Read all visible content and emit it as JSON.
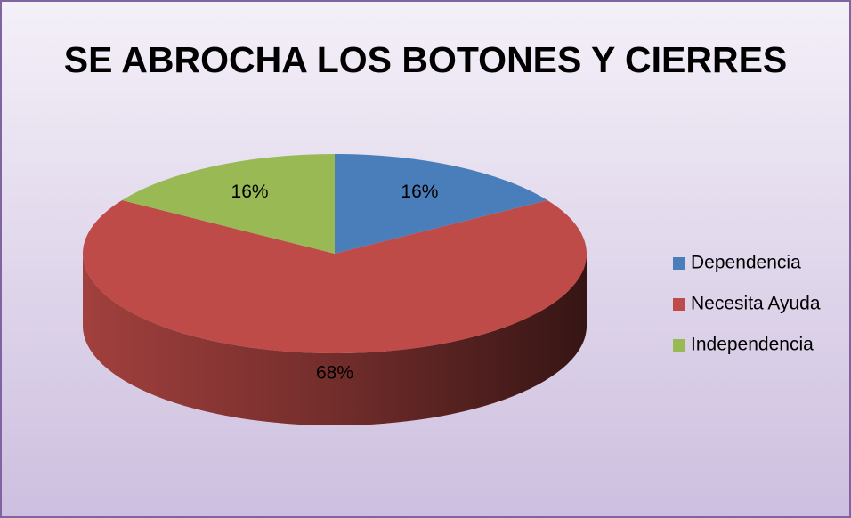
{
  "chart_data": {
    "type": "pie",
    "title": "SE ABROCHA LOS BOTONES Y CIERRES",
    "categories": [
      "Dependencia",
      "Necesita Ayuda",
      "Independencia"
    ],
    "values": [
      16,
      68,
      16
    ],
    "value_labels": [
      "16%",
      "68%",
      "16%"
    ],
    "colors": [
      "#4a7ebb",
      "#be4b48",
      "#98b954"
    ],
    "legend": "right"
  }
}
